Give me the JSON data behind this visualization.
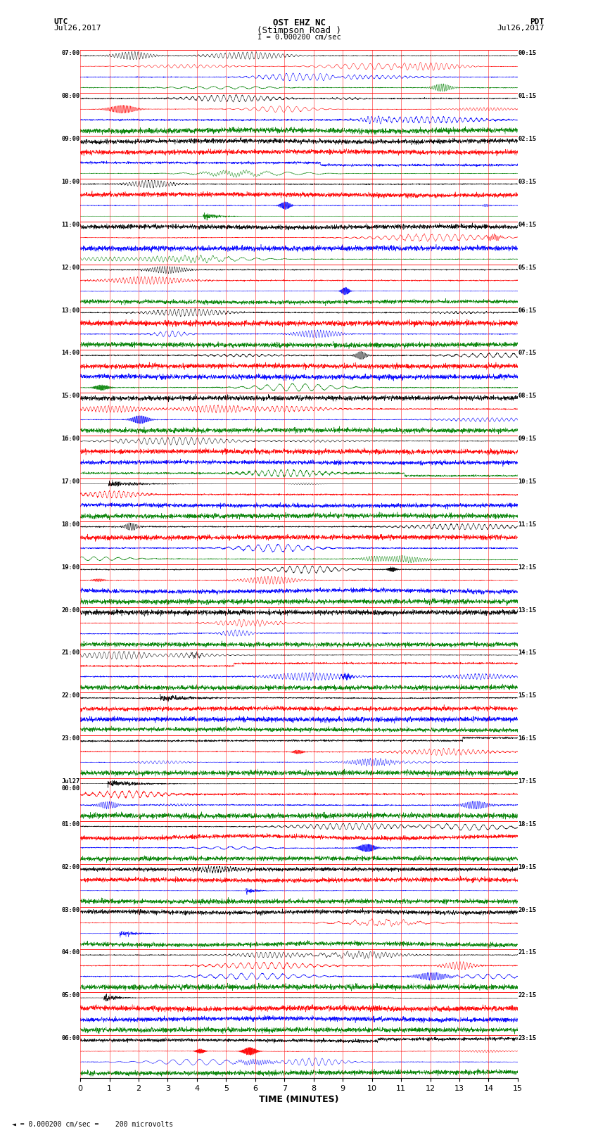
{
  "title_line1": "OST EHZ NC",
  "title_line2": "(Stimpson Road )",
  "title_line3": "I = 0.000200 cm/sec",
  "left_top_label": "UTC",
  "left_date_label": "Jul26,2017",
  "right_top_label": "PDT",
  "right_date_label": "Jul26,2017",
  "xlabel": "TIME (MINUTES)",
  "bottom_note": "= 0.000200 cm/sec =    200 microvolts",
  "x_min": 0,
  "x_max": 15,
  "figure_width": 8.5,
  "figure_height": 16.13,
  "background_color": "#ffffff",
  "grid_color": "#ff0000",
  "trace_colors": [
    "black",
    "red",
    "blue",
    "green"
  ],
  "num_hour_groups": 24,
  "left_time_labels": [
    "07:00",
    "08:00",
    "09:00",
    "10:00",
    "11:00",
    "12:00",
    "13:00",
    "14:00",
    "15:00",
    "16:00",
    "17:00",
    "18:00",
    "19:00",
    "20:00",
    "21:00",
    "22:00",
    "23:00",
    "Jul27\n00:00",
    "01:00",
    "02:00",
    "03:00",
    "04:00",
    "05:00",
    "06:00"
  ],
  "right_time_labels": [
    "00:15",
    "01:15",
    "02:15",
    "03:15",
    "04:15",
    "05:15",
    "06:15",
    "07:15",
    "08:15",
    "09:15",
    "10:15",
    "11:15",
    "12:15",
    "13:15",
    "14:15",
    "15:15",
    "16:15",
    "17:15",
    "18:15",
    "19:15",
    "20:15",
    "21:15",
    "22:15",
    "23:15"
  ],
  "dpi": 100
}
